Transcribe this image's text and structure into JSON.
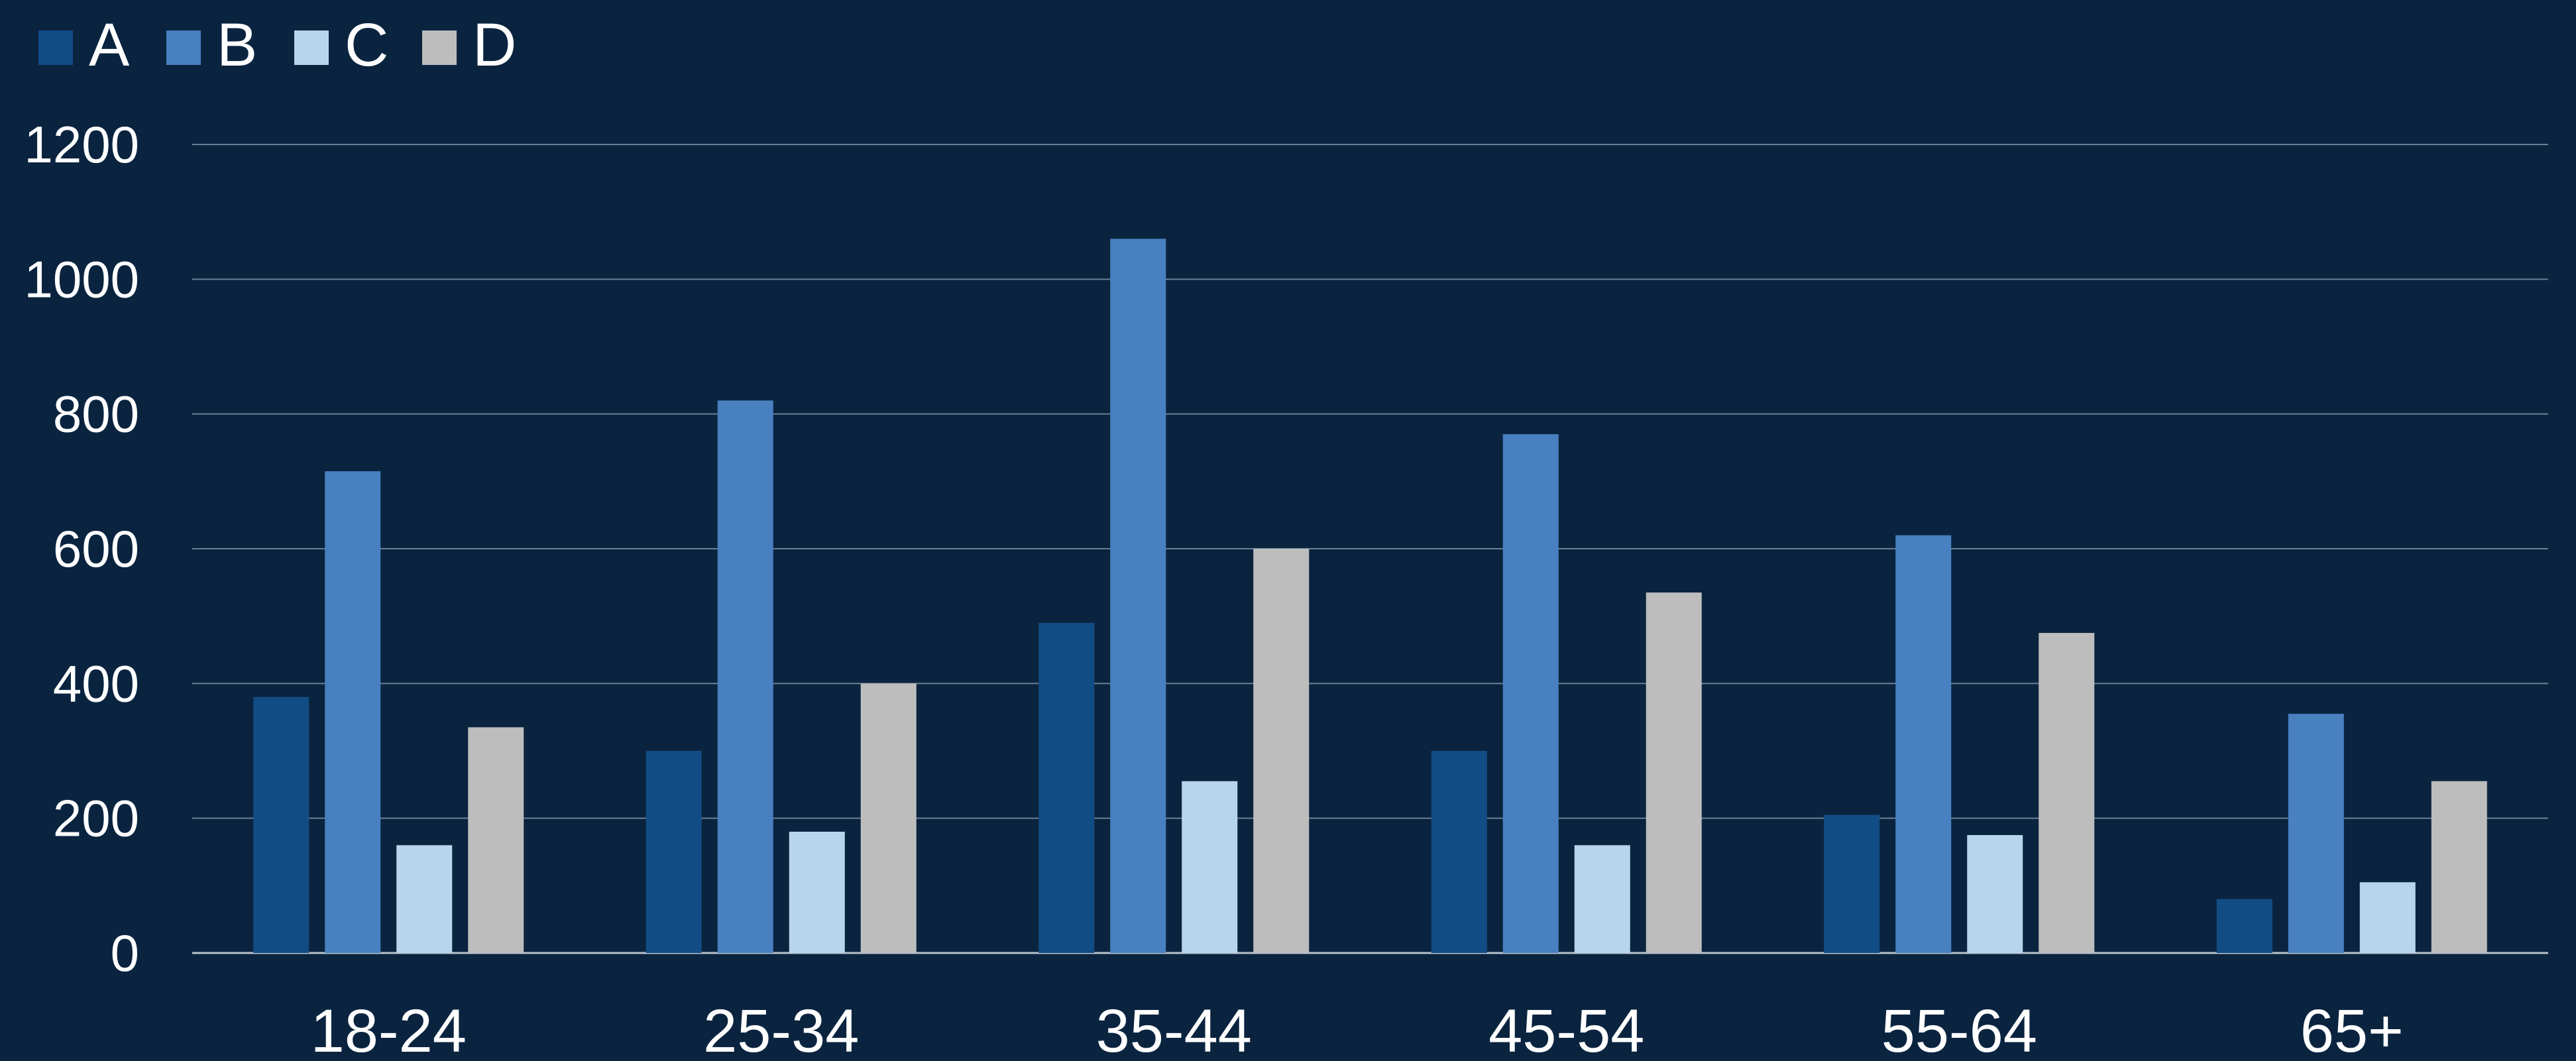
{
  "chart_data": {
    "type": "bar",
    "title": "",
    "xlabel": "",
    "ylabel": "",
    "categories": [
      "18-24",
      "25-34",
      "35-44",
      "45-54",
      "55-64",
      "65+"
    ],
    "series": [
      {
        "name": "A",
        "color": "#124c84",
        "values": [
          380,
          300,
          490,
          300,
          205,
          80
        ]
      },
      {
        "name": "B",
        "color": "#4880c0",
        "values": [
          715,
          820,
          1060,
          770,
          620,
          355
        ]
      },
      {
        "name": "C",
        "color": "#b7d5eb",
        "values": [
          160,
          180,
          255,
          160,
          175,
          105
        ]
      },
      {
        "name": "D",
        "color": "#bdbdbd",
        "values": [
          335,
          400,
          600,
          535,
          475,
          255
        ]
      }
    ],
    "ylim": [
      0,
      1200
    ],
    "yticks": [
      0,
      200,
      400,
      600,
      800,
      1000,
      1200
    ],
    "grid": true,
    "legend_position": "top-left",
    "colors": {
      "background": "#0a2440",
      "gridline": "#6d7f93",
      "text": "#ffffff"
    }
  }
}
